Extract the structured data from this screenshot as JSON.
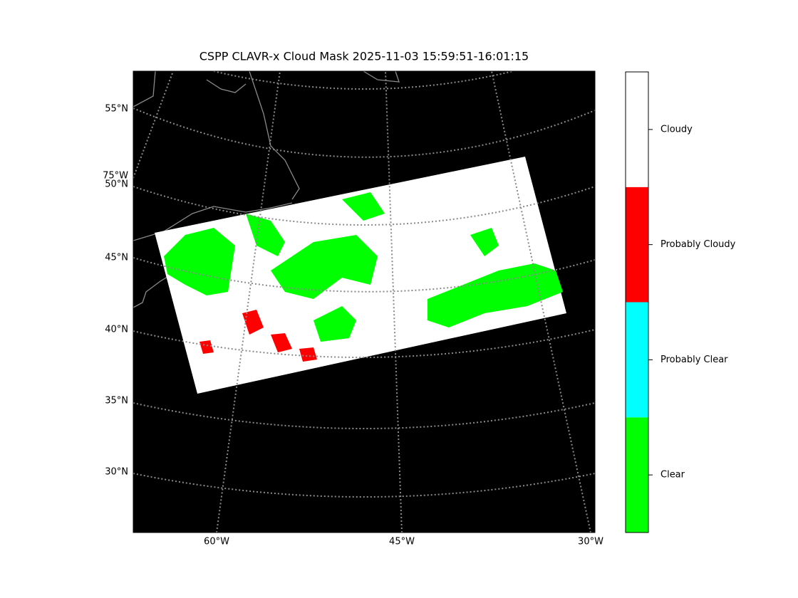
{
  "title": "CSPP CLAVR-x Cloud Mask 2025-11-03 15:59:51-16:01:15",
  "latitude_labels": [
    "55°N",
    "75°W",
    "50°N",
    "45°N",
    "40°N",
    "35°N",
    "30°N"
  ],
  "longitude_labels": [
    "60°W",
    "45°W",
    "30°W"
  ],
  "legend": [
    {
      "label": "Clear",
      "color": "#00ff00"
    },
    {
      "label": "Probably Clear",
      "color": "#00ffff"
    },
    {
      "label": "Probably Cloudy",
      "color": "#ff0000"
    },
    {
      "label": "Cloudy",
      "color": "#ffffff"
    }
  ]
}
